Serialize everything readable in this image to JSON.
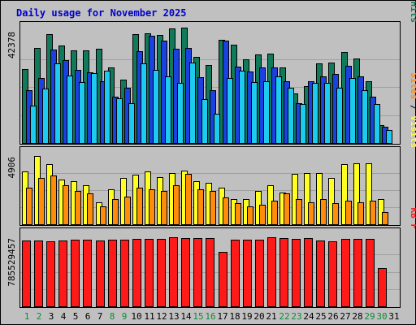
{
  "chart_data": {
    "type": "bar",
    "title": "Daily usage for November 2025",
    "days": [
      "1",
      "2",
      "3",
      "4",
      "5",
      "6",
      "7",
      "8",
      "9",
      "10",
      "11",
      "12",
      "13",
      "14",
      "15",
      "16",
      "17",
      "18",
      "19",
      "20",
      "21",
      "22",
      "23",
      "24",
      "25",
      "26",
      "27",
      "28",
      "29",
      "30",
      "31"
    ],
    "weekend_days": [
      "1",
      "2",
      "8",
      "9",
      "15",
      "16",
      "22",
      "23",
      "29",
      "30"
    ],
    "grid": true,
    "panels": [
      {
        "id": "hits",
        "max_label": "42378",
        "max_value": 42378,
        "side_labels": [
          "Pages",
          "Files",
          "Hits"
        ],
        "series": [
          {
            "name": "Hits",
            "color": "#117a5a",
            "values": [
              28000,
              36000,
              41000,
              37000,
              35000,
              35000,
              35500,
              28500,
              24000,
              41000,
              41600,
              40800,
              43200,
              43500,
              32500,
              29500,
              39000,
              37300,
              31500,
              33500,
              33800,
              28500,
              18600,
              21400,
              30200,
              30400,
              34300,
              32000,
              23300,
              6800,
              0
            ]
          },
          {
            "name": "Files",
            "color": "#1a42e0",
            "values": [
              20000,
              24500,
              35200,
              31300,
              27600,
              26600,
              23300,
              17400,
              21000,
              34800,
              40400,
              38600,
              35600,
              36000,
              24800,
              20100,
              38800,
              29000,
              27000,
              28600,
              28700,
              23400,
              15000,
              23300,
              25100,
              26000,
              29300,
              25200,
              17600,
              6000,
              0
            ]
          },
          {
            "name": "Pages",
            "color": "#1ecbf0",
            "values": [
              14000,
              20500,
              30000,
              25400,
              23000,
              26400,
              27200,
              16900,
              15100,
              30000,
              27700,
              25200,
              22700,
              30300,
              16700,
              11100,
              24500,
              27200,
              23000,
              23200,
              25200,
              20800,
              14700,
              22800,
              22700,
              20800,
              24700,
              20000,
              14800,
              4800,
              0
            ]
          }
        ]
      },
      {
        "id": "visits",
        "max_label": "4906",
        "max_value": 4906,
        "side_labels": [
          "Sites",
          "Visits"
        ],
        "series": [
          {
            "name": "Visits",
            "color": "#ffff22",
            "values": [
              3800,
              4906,
              4300,
              3200,
              3100,
              2800,
              1600,
              2500,
              3350,
              3550,
              3800,
              3400,
              3700,
              3850,
              3100,
              3000,
              2600,
              1800,
              1800,
              2400,
              2800,
              2300,
              3600,
              3700,
              3700,
              3300,
              4300,
              4400,
              4400,
              1800,
              0
            ]
          },
          {
            "name": "Sites",
            "color": "#ff8c0a",
            "values": [
              2600,
              3300,
              3500,
              2800,
              2400,
              2200,
              1300,
              1800,
              2000,
              2600,
              2500,
              2400,
              2800,
              3600,
              2500,
              2400,
              1900,
              1500,
              1300,
              1400,
              1700,
              2200,
              1800,
              1600,
              1800,
              1500,
              1700,
              1600,
              1700,
              900,
              0
            ]
          }
        ]
      },
      {
        "id": "kbytes",
        "max_label": "785529457",
        "max_value": 785529457,
        "side_labels": [
          "KB F"
        ],
        "series": [
          {
            "name": "KB F",
            "color": "#ff1a1a",
            "values": [
              751000000,
              751000000,
              743000000,
              751000000,
              760000000,
              760000000,
              751000000,
              760000000,
              760000000,
              768000000,
              768000000,
              768000000,
              785529457,
              776000000,
              776000000,
              776000000,
              616000000,
              760000000,
              760000000,
              760000000,
              785000000,
              776000000,
              768000000,
              776000000,
              751000000,
              743000000,
              768000000,
              768000000,
              768000000,
              430000000,
              0
            ]
          }
        ]
      }
    ]
  }
}
